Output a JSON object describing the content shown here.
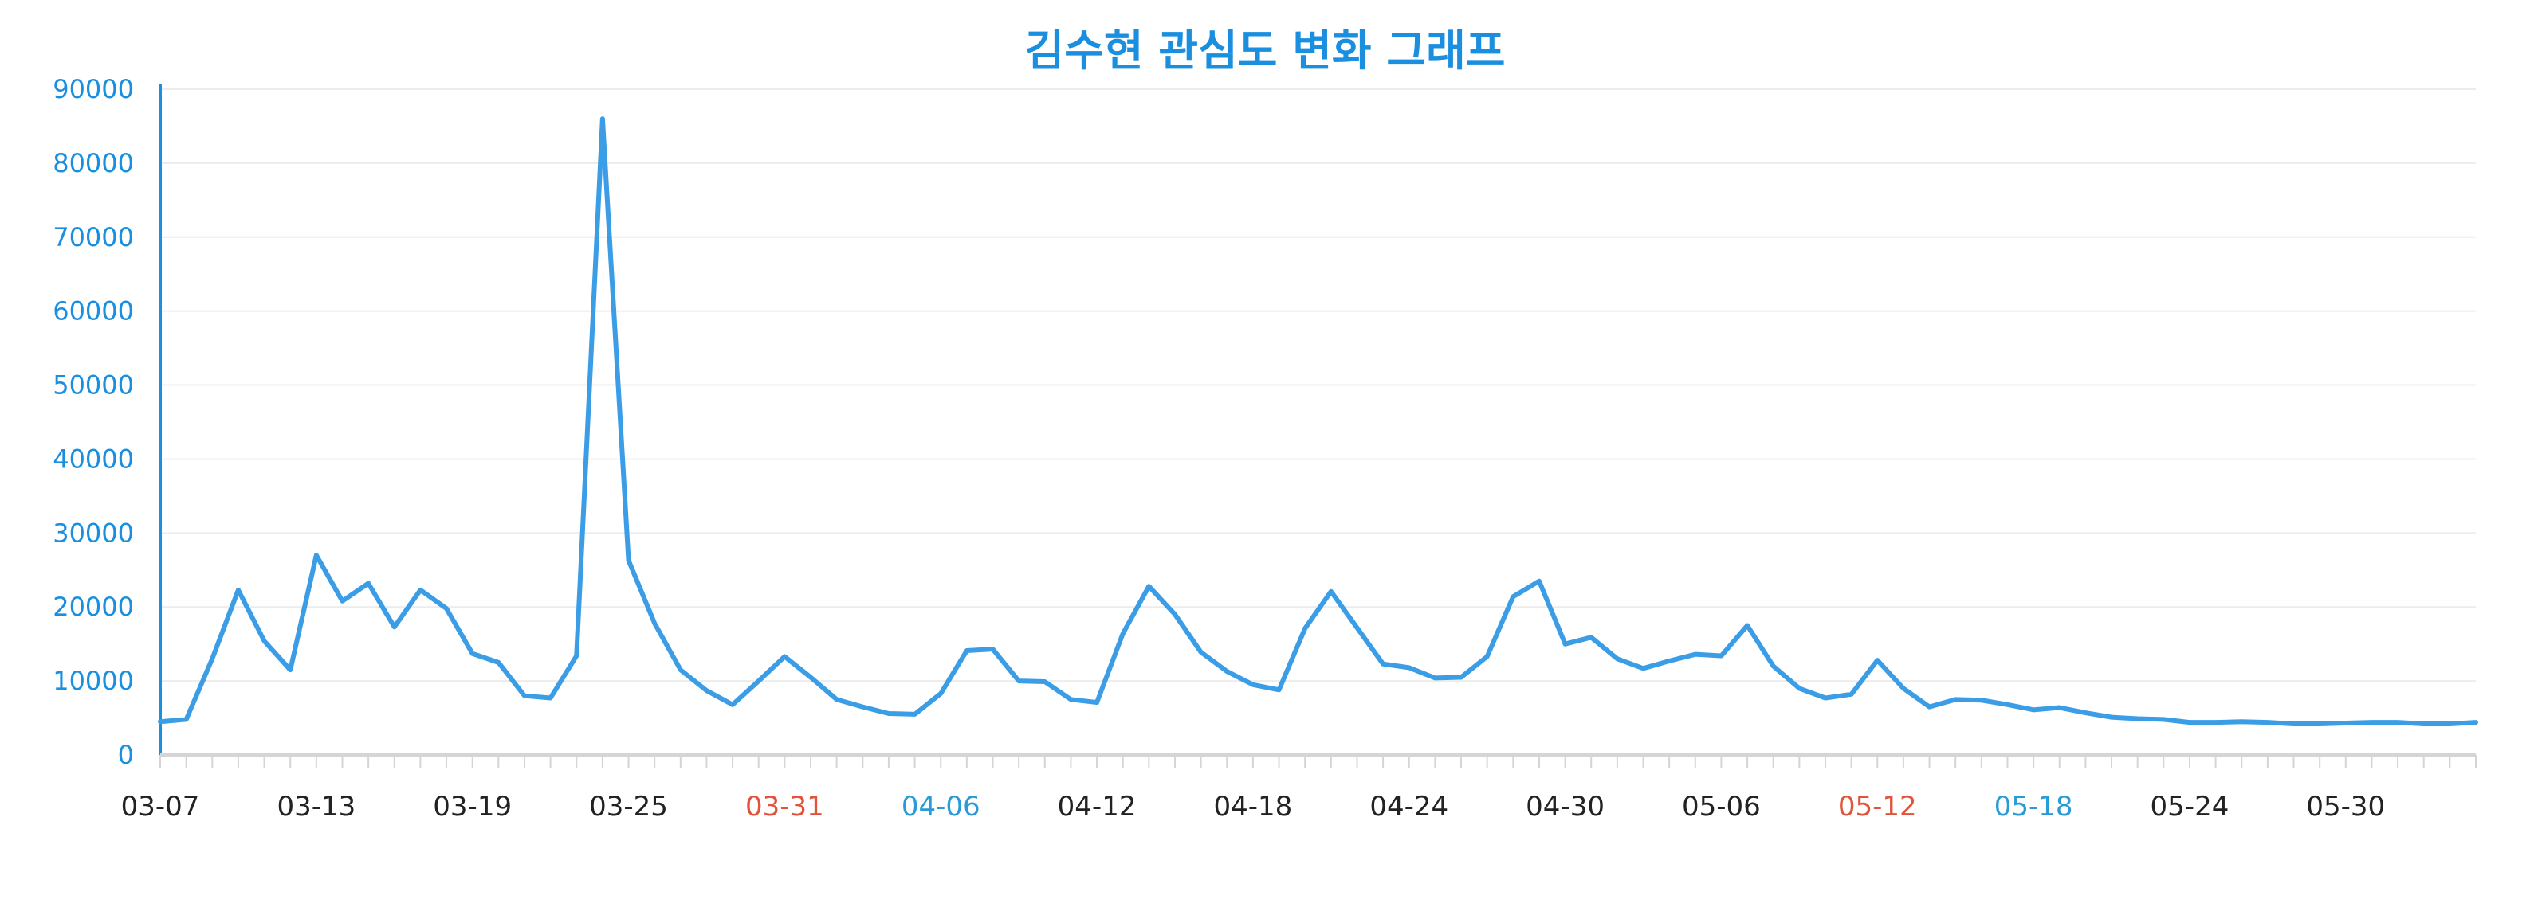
{
  "chart_data": {
    "type": "line",
    "title": "김수현 관심도 변화 그래프",
    "xlabel": "",
    "ylabel": "",
    "ylim": [
      0,
      90000
    ],
    "y_ticks": [
      0,
      10000,
      20000,
      30000,
      40000,
      50000,
      60000,
      70000,
      80000,
      90000
    ],
    "grid": true,
    "x_ticks": [
      {
        "label": "03-07",
        "color": "#222222"
      },
      {
        "label": "03-13",
        "color": "#222222"
      },
      {
        "label": "03-19",
        "color": "#222222"
      },
      {
        "label": "03-25",
        "color": "#222222"
      },
      {
        "label": "03-31",
        "color": "#e2533b"
      },
      {
        "label": "04-06",
        "color": "#2a9bd6"
      },
      {
        "label": "04-12",
        "color": "#222222"
      },
      {
        "label": "04-18",
        "color": "#222222"
      },
      {
        "label": "04-24",
        "color": "#222222"
      },
      {
        "label": "04-30",
        "color": "#222222"
      },
      {
        "label": "05-06",
        "color": "#222222"
      },
      {
        "label": "05-12",
        "color": "#e2533b"
      },
      {
        "label": "05-18",
        "color": "#2a9bd6"
      },
      {
        "label": "05-24",
        "color": "#222222"
      },
      {
        "label": "05-30",
        "color": "#222222"
      }
    ],
    "x": [
      "03-07",
      "03-08",
      "03-09",
      "03-10",
      "03-11",
      "03-12",
      "03-13",
      "03-14",
      "03-15",
      "03-16",
      "03-17",
      "03-18",
      "03-19",
      "03-20",
      "03-21",
      "03-22",
      "03-23",
      "03-24",
      "03-25",
      "03-26",
      "03-27",
      "03-28",
      "03-29",
      "03-30",
      "03-31",
      "04-01",
      "04-02",
      "04-03",
      "04-04",
      "04-05",
      "04-06",
      "04-07",
      "04-08",
      "04-09",
      "04-10",
      "04-11",
      "04-12",
      "04-13",
      "04-14",
      "04-15",
      "04-16",
      "04-17",
      "04-18",
      "04-19",
      "04-20",
      "04-21",
      "04-22",
      "04-23",
      "04-24",
      "04-25",
      "04-26",
      "04-27",
      "04-28",
      "04-29",
      "04-30",
      "05-01",
      "05-02",
      "05-03",
      "05-04",
      "05-05",
      "05-06",
      "05-07",
      "05-08",
      "05-09",
      "05-10",
      "05-11",
      "05-12",
      "05-13",
      "05-14",
      "05-15",
      "05-16",
      "05-17",
      "05-18",
      "05-19",
      "05-20",
      "05-21",
      "05-22",
      "05-23",
      "05-24",
      "05-25",
      "05-26",
      "05-27",
      "05-28",
      "05-29",
      "05-30",
      "05-31",
      "06-01",
      "06-02",
      "06-03",
      "06-04"
    ],
    "series": [
      {
        "values": [
          4500,
          4800,
          13000,
          22300,
          15400,
          11500,
          27000,
          20800,
          23200,
          17300,
          22300,
          19800,
          13700,
          12500,
          8000,
          7700,
          13400,
          86000,
          26300,
          17800,
          11500,
          8700,
          6800,
          10000,
          13300,
          10500,
          7500,
          6500,
          5600,
          5500,
          8300,
          14100,
          14300,
          10000,
          9900,
          7500,
          7100,
          16400,
          22800,
          19000,
          13900,
          11300,
          9500,
          8800,
          17100,
          22100,
          17200,
          12300,
          11800,
          10400,
          10500,
          13300,
          21400,
          23500,
          15000,
          15900,
          13000,
          11700,
          12700,
          13600,
          13400,
          17500,
          12000,
          9000,
          7700,
          8200,
          12800,
          9000,
          6500,
          7500,
          7400,
          6800,
          6100,
          6400,
          5700,
          5100,
          4900,
          4800,
          4400,
          4400,
          4500,
          4400,
          4200,
          4200,
          4300,
          4400,
          4400,
          4200,
          4200,
          4400
        ]
      }
    ],
    "colors": {
      "line": "#3a9de6",
      "title": "#1a8fe0",
      "y_axis": "#1a8fe0",
      "y_labels": "#1a8fe0",
      "x_axis": "#d5d5d5",
      "grid": "#ececec",
      "x_label_default": "#222222",
      "x_label_saturday": "#2a9bd6",
      "x_label_holiday": "#e2533b"
    }
  }
}
